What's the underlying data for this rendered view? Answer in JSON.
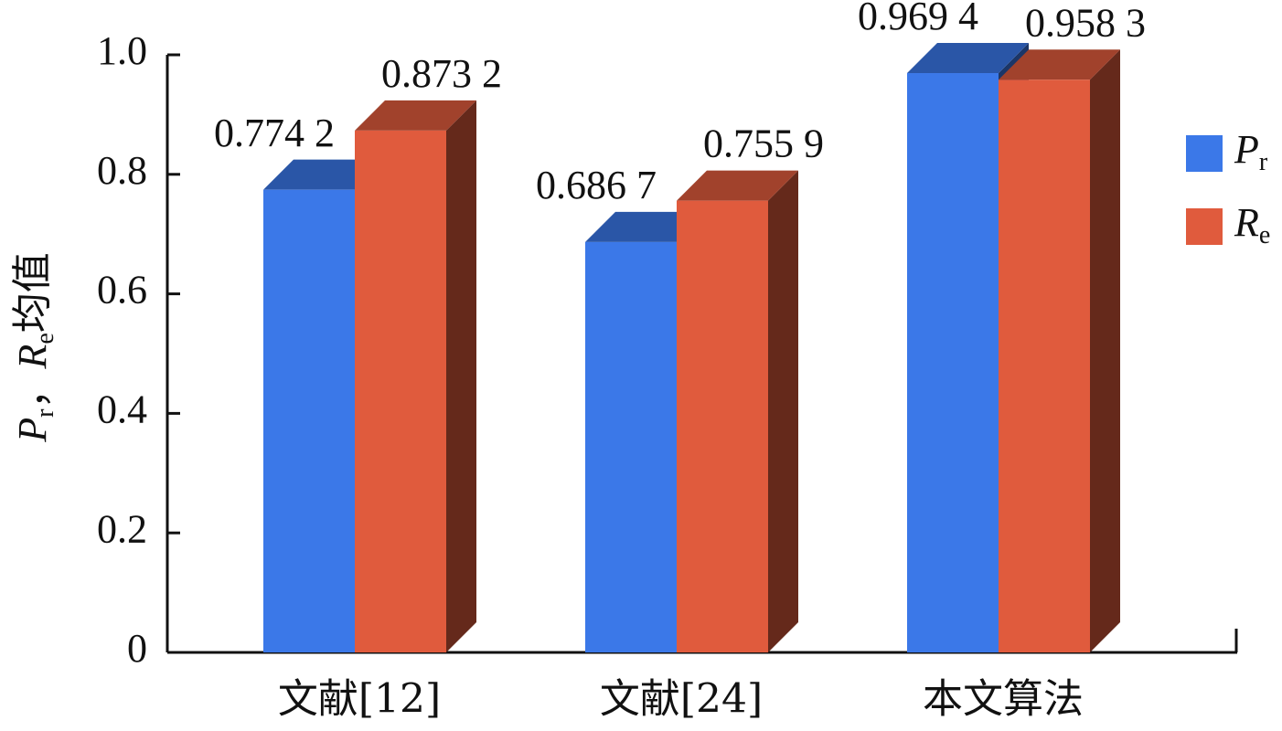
{
  "chart_data": {
    "type": "bar3d",
    "y_label": "Pr，Re均值",
    "categories": [
      "文献[12]",
      "文献[24]",
      "本文算法"
    ],
    "series": [
      {
        "name": "Pr",
        "color": "#3b78e8",
        "values": [
          0.7742,
          0.6867,
          0.9694
        ],
        "value_labels": [
          "0.774 2",
          "0.686 7",
          "0.969 4"
        ]
      },
      {
        "name": "Re",
        "color": "#e05b3d",
        "values": [
          0.8732,
          0.7559,
          0.9583
        ],
        "value_labels": [
          "0.873 2",
          "0.755 9",
          "0.958 3"
        ]
      }
    ],
    "ylim": [
      0,
      1
    ],
    "yticks": [
      0,
      0.2,
      0.4,
      0.6,
      0.8,
      {
        "value": 1,
        "label": "1.0"
      }
    ],
    "grid": false,
    "legend": "right"
  }
}
